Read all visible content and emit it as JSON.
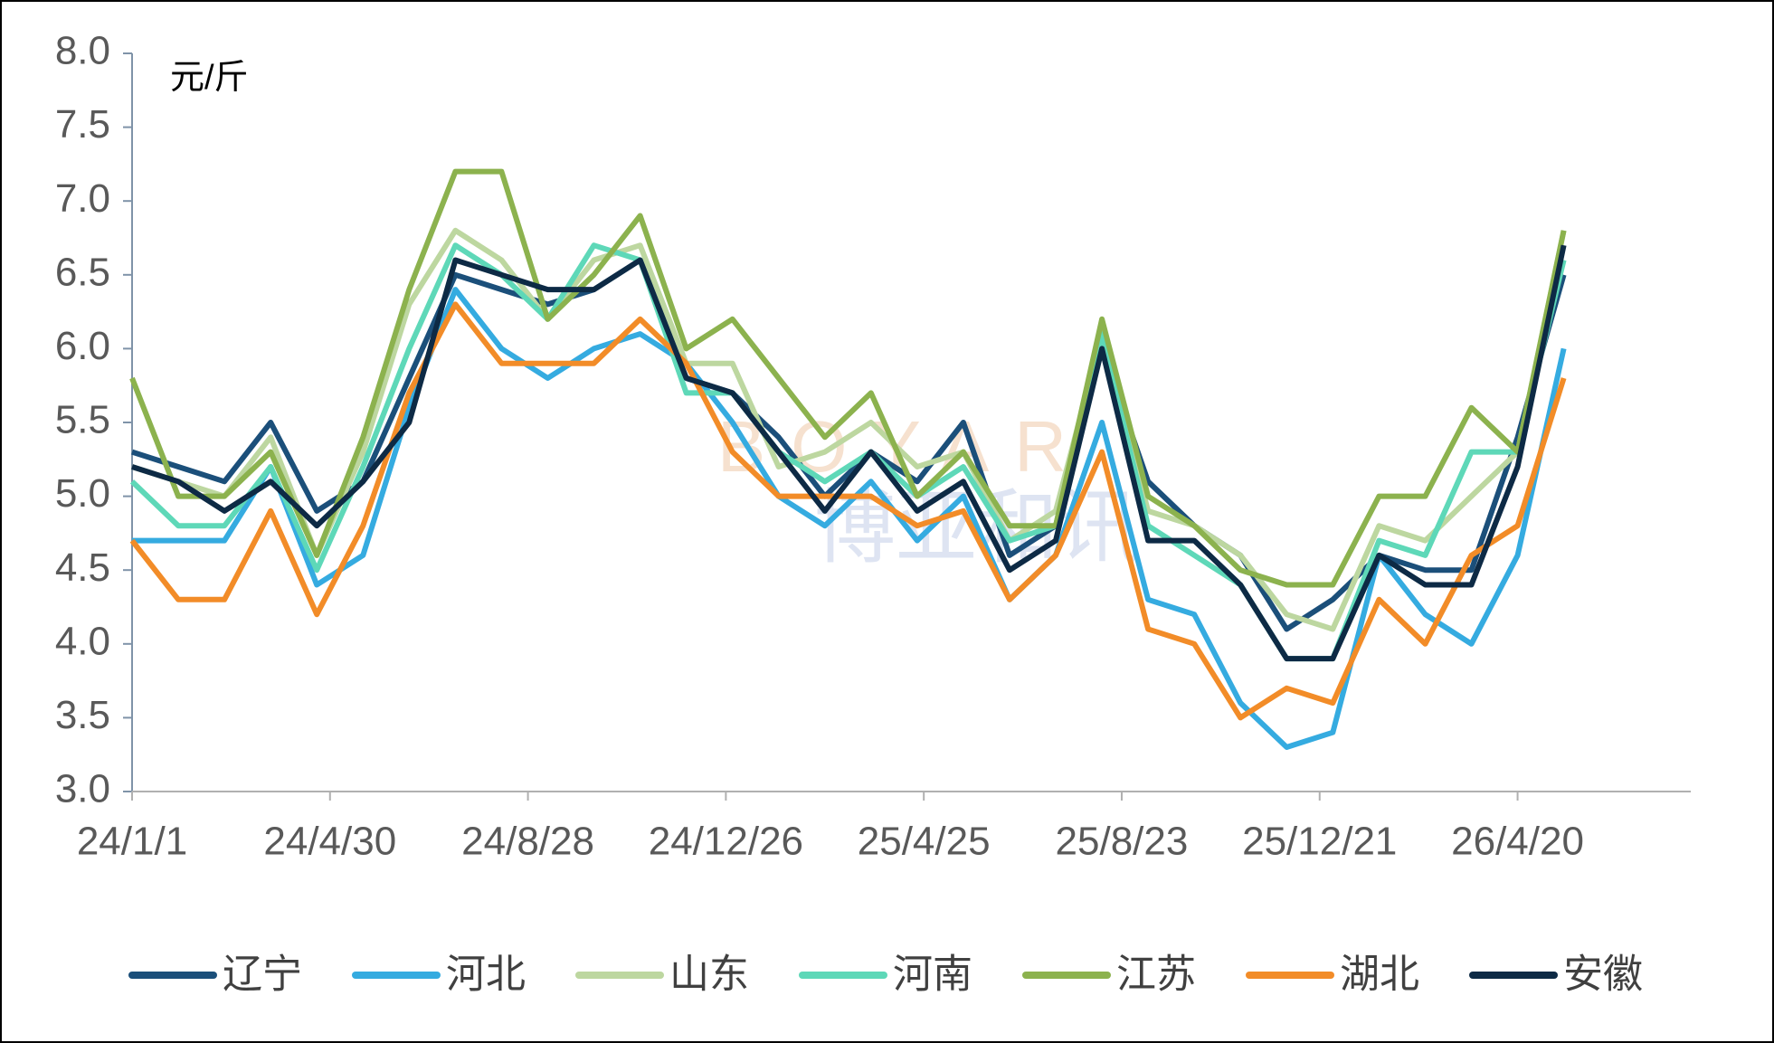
{
  "chart_data": {
    "type": "line",
    "y_label": "元/斤",
    "watermark": "BOYAR",
    "watermark_cn": "博亚和讯",
    "x": [
      "24/1/1",
      "24/1/29",
      "24/2/26",
      "24/3/25",
      "24/4/22",
      "24/5/20",
      "24/6/17",
      "24/7/15",
      "24/8/12",
      "24/9/9",
      "24/10/7",
      "24/11/4",
      "24/12/2",
      "24/12/30",
      "25/1/27",
      "25/2/24",
      "25/3/24",
      "25/4/21",
      "25/5/19",
      "25/6/16",
      "25/7/14",
      "25/8/11",
      "25/9/8",
      "25/10/6",
      "25/11/3",
      "25/12/1",
      "25/12/29",
      "26/1/26",
      "26/2/23",
      "26/3/23",
      "26/4/20",
      "26/5/18"
    ],
    "xlim": [
      "24/1/1",
      "26/8/3"
    ],
    "xticks": [
      "24/1/1",
      "24/4/30",
      "24/8/28",
      "24/12/26",
      "25/4/25",
      "25/8/23",
      "25/12/21",
      "26/4/20"
    ],
    "ylim": [
      3,
      8
    ],
    "yticks": [
      {
        "value": 3,
        "label": "3.0"
      },
      3.5,
      {
        "value": 4,
        "label": "4.0"
      },
      4.5,
      {
        "value": 5,
        "label": "5.0"
      },
      5.5,
      {
        "value": 6,
        "label": "6.0"
      },
      6.5,
      {
        "value": 7,
        "label": "7.0"
      },
      7.5,
      {
        "value": 8,
        "label": "8.0"
      }
    ],
    "grid": false,
    "legend": "bottom",
    "series": [
      {
        "name": "辽宁",
        "color": "#1b4f7a",
        "values": [
          5.3,
          5.2,
          5.1,
          5.5,
          4.9,
          5.1,
          5.8,
          6.5,
          6.4,
          6.3,
          6.4,
          6.6,
          5.8,
          5.7,
          5.4,
          5.0,
          5.3,
          5.1,
          5.5,
          4.6,
          4.8,
          6.0,
          5.1,
          4.8,
          4.6,
          4.1,
          4.3,
          4.6,
          4.5,
          4.5,
          5.4,
          6.5
        ]
      },
      {
        "name": "河北",
        "color": "#35abe0",
        "values": [
          4.7,
          4.7,
          4.7,
          5.2,
          4.4,
          4.6,
          5.6,
          6.4,
          6.0,
          5.8,
          6.0,
          6.1,
          5.9,
          5.5,
          5.0,
          4.8,
          5.1,
          4.7,
          5.0,
          4.3,
          4.6,
          5.5,
          4.3,
          4.2,
          3.6,
          3.3,
          3.4,
          4.6,
          4.2,
          4.0,
          4.6,
          6.0
        ]
      },
      {
        "name": "山东",
        "color": "#bdd7a0",
        "values": [
          5.2,
          5.1,
          5.0,
          5.4,
          4.6,
          5.3,
          6.3,
          6.8,
          6.6,
          6.2,
          6.6,
          6.7,
          5.9,
          5.9,
          5.2,
          5.3,
          5.5,
          5.2,
          5.3,
          4.7,
          4.9,
          6.1,
          4.9,
          4.8,
          4.6,
          4.2,
          4.1,
          4.8,
          4.7,
          5.0,
          5.3,
          6.8
        ]
      },
      {
        "name": "河南",
        "color": "#5ed8b8",
        "values": [
          5.1,
          4.8,
          4.8,
          5.2,
          4.5,
          5.2,
          6.0,
          6.7,
          6.5,
          6.2,
          6.7,
          6.6,
          5.7,
          5.7,
          5.3,
          5.1,
          5.3,
          5.0,
          5.2,
          4.7,
          4.8,
          6.1,
          4.8,
          4.6,
          4.4,
          3.9,
          3.9,
          4.7,
          4.6,
          5.3,
          5.3,
          6.6
        ]
      },
      {
        "name": "江苏",
        "color": "#8cb24e",
        "values": [
          5.8,
          5.0,
          5.0,
          5.3,
          4.6,
          5.4,
          6.4,
          7.2,
          7.2,
          6.2,
          6.5,
          6.9,
          6.0,
          6.2,
          5.8,
          5.4,
          5.7,
          5.0,
          5.3,
          4.8,
          4.8,
          6.2,
          5.0,
          4.8,
          4.5,
          4.4,
          4.4,
          5.0,
          5.0,
          5.6,
          5.3,
          6.8
        ]
      },
      {
        "name": "湖北",
        "color": "#f28c28",
        "values": [
          4.7,
          4.3,
          4.3,
          4.9,
          4.2,
          4.8,
          5.7,
          6.3,
          5.9,
          5.9,
          5.9,
          6.2,
          5.9,
          5.3,
          5.0,
          5.0,
          5.0,
          4.8,
          4.9,
          4.3,
          4.6,
          5.3,
          4.1,
          4.0,
          3.5,
          3.7,
          3.6,
          4.3,
          4.0,
          4.6,
          4.8,
          5.8
        ]
      },
      {
        "name": "安徽",
        "color": "#0d2a45",
        "values": [
          5.2,
          5.1,
          4.9,
          5.1,
          4.8,
          5.1,
          5.5,
          6.6,
          6.5,
          6.4,
          6.4,
          6.6,
          5.8,
          5.7,
          5.3,
          4.9,
          5.3,
          4.9,
          5.1,
          4.5,
          4.7,
          6.0,
          4.7,
          4.7,
          4.4,
          3.9,
          3.9,
          4.6,
          4.4,
          4.4,
          5.2,
          6.7
        ]
      }
    ]
  }
}
